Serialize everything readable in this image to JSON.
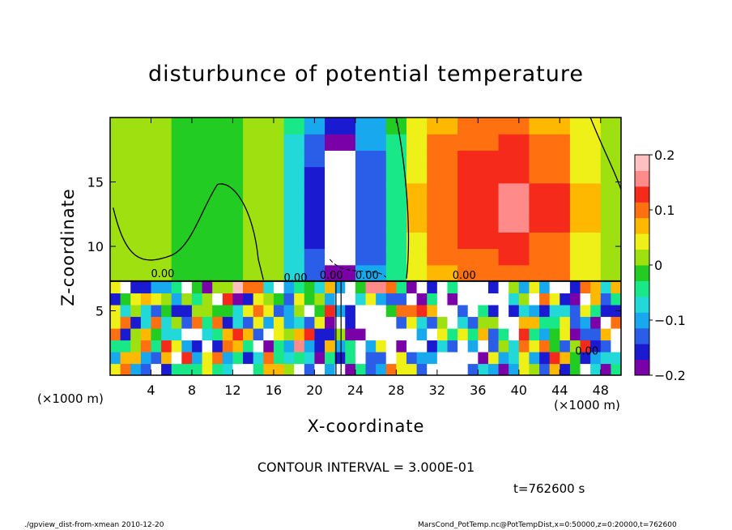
{
  "chart_data": {
    "type": "heatmap",
    "title": "disturbunce of potential temperature",
    "xlabel": "X-coordinate",
    "ylabel": "Z-coordinate",
    "x_unit_left": "(×1000 m)",
    "x_unit_right": "(×1000 m)",
    "xlim": [
      0,
      50
    ],
    "ylim": [
      0,
      20
    ],
    "x_ticks": [
      "4",
      "8",
      "12",
      "16",
      "20",
      "24",
      "28",
      "32",
      "36",
      "40",
      "44",
      "48"
    ],
    "y_ticks": [
      "5",
      "10",
      "15"
    ],
    "colorbar": {
      "range": [
        -0.2,
        0.2
      ],
      "tick_labels": [
        "0.2",
        "0.1",
        "0",
        "−0.1",
        "−0.2"
      ],
      "colors": [
        "#7a00a8",
        "#1a1ad0",
        "#2a5ee8",
        "#18a8ee",
        "#22d8d8",
        "#18e888",
        "#22cc22",
        "#9ee010",
        "#eef018",
        "#ffb800",
        "#ff7010",
        "#f52a1a",
        "#ff8a8a",
        "#ffc0c0"
      ]
    },
    "contour_labels": [
      "0.00",
      "0.00",
      "0.00",
      "0.00",
      "0.00",
      "0.00"
    ],
    "contour_interval": "CONTOUR INTERVAL = 3.000E-01",
    "time_label": "t=762600 s",
    "upper_layer_bands": [
      {
        "x0": 0,
        "x1": 6,
        "value": 0.0
      },
      {
        "x0": 6,
        "x1": 13,
        "value": -0.02
      },
      {
        "x0": 13,
        "x1": 17,
        "value": 0.02
      },
      {
        "x0": 17,
        "x1": 19,
        "value": -0.08
      },
      {
        "x0": 19,
        "x1": 21,
        "value": -0.16
      },
      {
        "x0": 21,
        "x1": 24,
        "value": -0.25
      },
      {
        "x0": 24,
        "x1": 27,
        "value": -0.14
      },
      {
        "x0": 27,
        "x1": 29,
        "value": -0.04
      },
      {
        "x0": 29,
        "x1": 31,
        "value": 0.06
      },
      {
        "x0": 31,
        "x1": 34,
        "value": 0.11
      },
      {
        "x0": 34,
        "x1": 38,
        "value": 0.13
      },
      {
        "x0": 38,
        "x1": 41,
        "value": 0.15
      },
      {
        "x0": 41,
        "x1": 45,
        "value": 0.12
      },
      {
        "x0": 45,
        "x1": 48,
        "value": 0.06
      },
      {
        "x0": 48,
        "x1": 50,
        "value": 0.02
      }
    ]
  },
  "footer": {
    "left": "./gpview_dist-from-xmean  2010-12-20",
    "right": "MarsCond_PotTemp.nc@PotTempDist,x=0:50000,z=0:20000,t=762600"
  }
}
